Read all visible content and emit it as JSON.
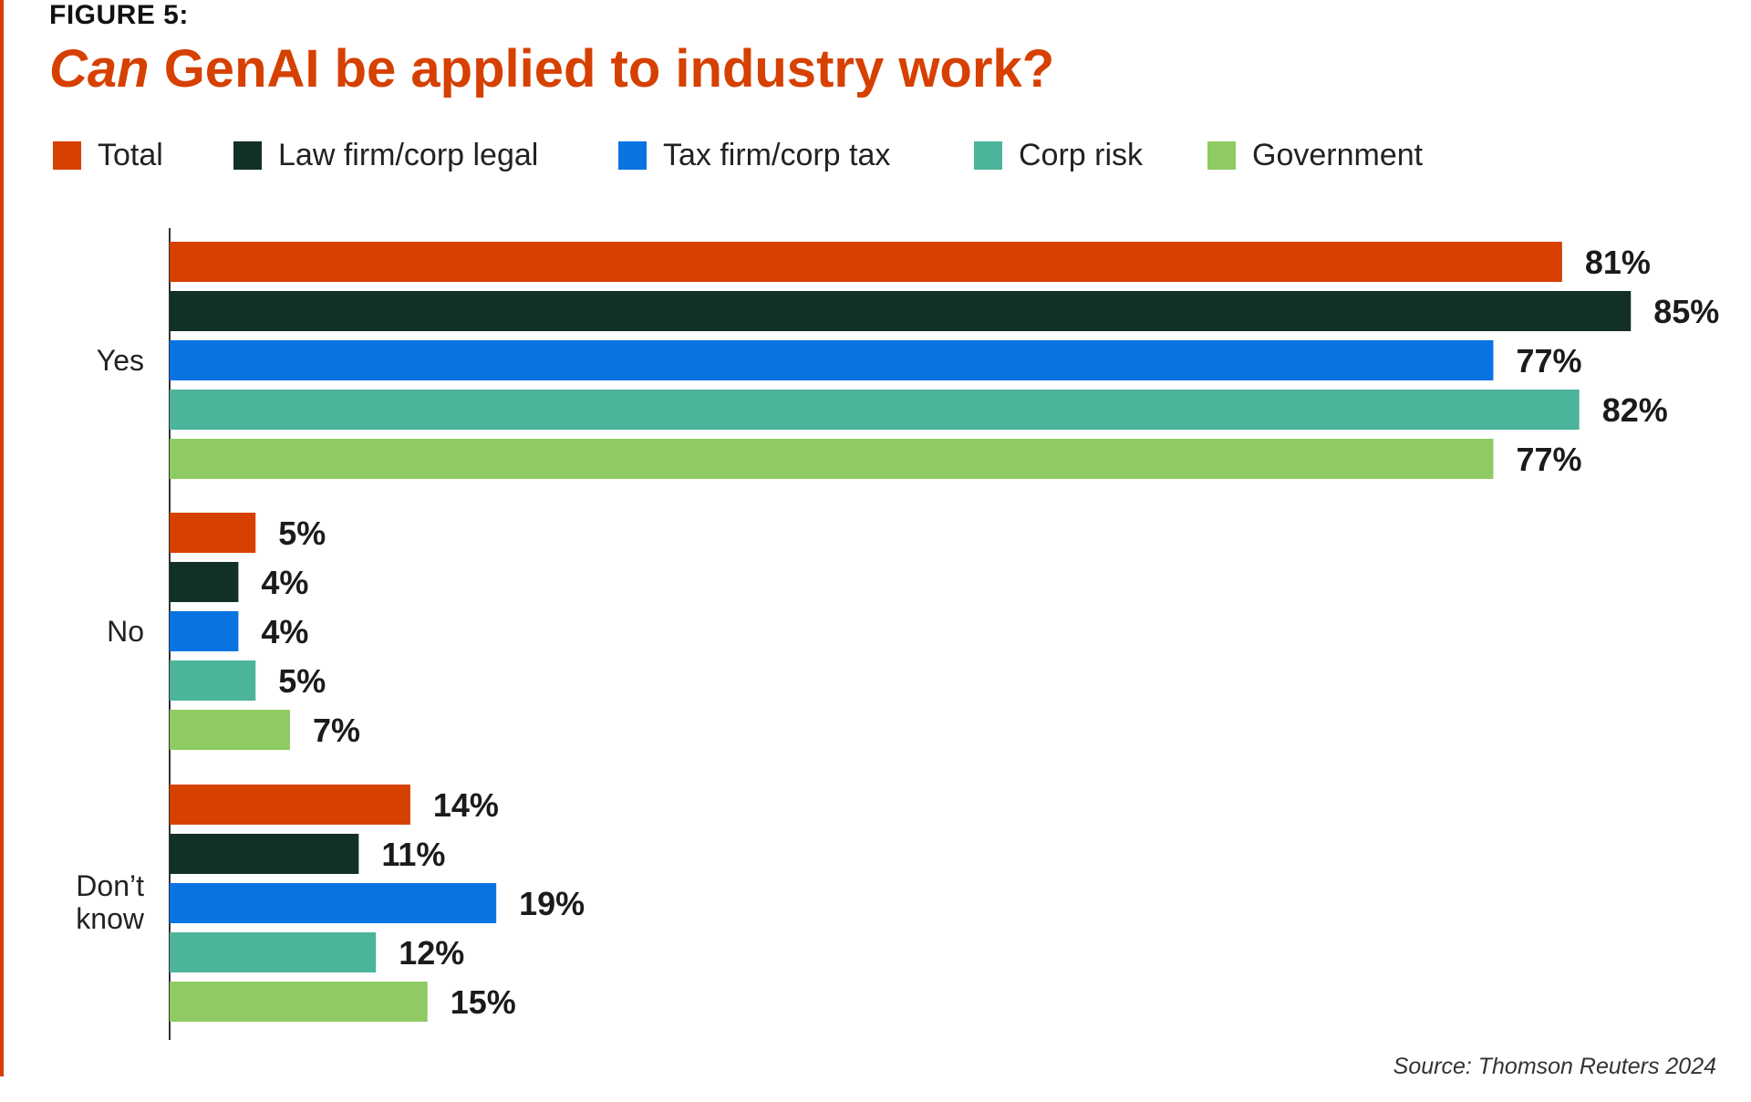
{
  "figure_label": "FIGURE 5:",
  "title_italic": "Can",
  "title_rest": " GenAI be applied to industry work?",
  "source": "Source: Thomson Reuters 2024",
  "colors": {
    "Total": "#d64000",
    "Law firm/corp legal": "#123023",
    "Tax firm/corp tax": "#0a73e2",
    "Corp risk": "#4cb49a",
    "Government": "#8ecb62",
    "axis": "#333333",
    "accent": "#d64000"
  },
  "chart_data": {
    "type": "bar",
    "orientation": "horizontal",
    "title": "Can GenAI be applied to industry work?",
    "categories": [
      "Yes",
      "No",
      "Don’t know"
    ],
    "series": [
      {
        "name": "Total",
        "values": [
          81,
          5,
          14
        ]
      },
      {
        "name": "Law firm/corp legal",
        "values": [
          85,
          4,
          11
        ]
      },
      {
        "name": "Tax firm/corp tax",
        "values": [
          77,
          4,
          19
        ]
      },
      {
        "name": "Corp risk",
        "values": [
          82,
          5,
          12
        ]
      },
      {
        "name": "Government",
        "values": [
          77,
          7,
          15
        ]
      }
    ],
    "value_suffix": "%",
    "xlim": [
      0,
      100
    ],
    "legend": "top",
    "grid": false
  }
}
